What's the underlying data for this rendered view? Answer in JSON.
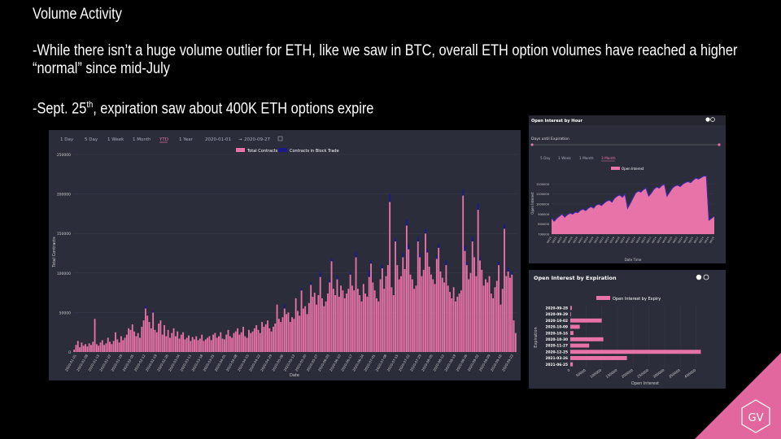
{
  "slide": {
    "title": "Volume Activity",
    "bullet1": "-While there isn’t a huge volume outlier for ETH, like we saw in BTC, overall ETH option volumes have reached a higher “normal” since mid-July",
    "bullet2_prefix": "-Sept. 25",
    "bullet2_sup": "th",
    "bullet2_suffix": ", expiration saw about 400K ETH options expire"
  },
  "logo_text": "GV",
  "colors": {
    "pink": "#e873a8",
    "navy": "#1a1a8c",
    "panel": "#2b2d3a",
    "grid": "#3c3e4d",
    "accent_active": "#e873a8"
  },
  "volume_panel": {
    "ranges": [
      "1 Day",
      "5 Day",
      "1 Week",
      "1 Month",
      "YTD",
      "1 Year"
    ],
    "active_range": "YTD",
    "date_from": "2020-01-01",
    "date_to": "2020-09-27",
    "calendar_icon": "calendar-icon",
    "ylabel": "Total Contracts",
    "xlabel": "Date"
  },
  "oi_hour_panel": {
    "title": "Open Interest by Hour",
    "slider_label": "Days until Expiration",
    "ranges": [
      "5 Day",
      "1 Week",
      "1 Month",
      "3 Month"
    ],
    "active_range": "3 Month",
    "ylabel": "Open Interest",
    "xlabel": "Date Time",
    "legend": "Open Interest"
  },
  "oi_exp_panel": {
    "title": "Open Interest by Expiration",
    "ylabel": "Expiration",
    "xlabel": "Open Interest",
    "legend": "Open Interest by Expiry"
  },
  "chart_data": [
    {
      "type": "bar",
      "legend": [
        "Total Contracts",
        "Contracts in Block Trade"
      ],
      "ylabel": "Total Contracts",
      "xlabel": "Date",
      "ylim": [
        0,
        250000
      ],
      "yticks": [
        0,
        50000,
        100000,
        150000,
        200000,
        250000
      ],
      "xticks": [
        "2020-01-01",
        "2020-01-08",
        "2020-01-15",
        "2020-01-22",
        "2020-01-29",
        "2020-02-05",
        "2020-02-12",
        "2020-02-19",
        "2020-02-26",
        "2020-03-04",
        "2020-03-11",
        "2020-03-18",
        "2020-03-25",
        "2020-04-01",
        "2020-04-08",
        "2020-04-15",
        "2020-04-22",
        "2020-04-29",
        "2020-05-06",
        "2020-05-13",
        "2020-05-20",
        "2020-05-27",
        "2020-06-03",
        "2020-06-10",
        "2020-06-17",
        "2020-06-24",
        "2020-07-01",
        "2020-07-08",
        "2020-07-15",
        "2020-07-22",
        "2020-07-29",
        "2020-08-05",
        "2020-08-12",
        "2020-08-19",
        "2020-08-26",
        "2020-09-02",
        "2020-09-09",
        "2020-09-16",
        "2020-09-23"
      ],
      "series": [
        {
          "name": "Total Contracts",
          "values": [
            3000,
            9000,
            14000,
            6000,
            12000,
            8000,
            10000,
            7000,
            11000,
            9000,
            13000,
            42000,
            10000,
            8000,
            12000,
            15000,
            9000,
            11000,
            18000,
            13000,
            10000,
            14000,
            25000,
            16000,
            12000,
            20000,
            15000,
            18000,
            22000,
            30000,
            28000,
            35000,
            26000,
            20000,
            24000,
            18000,
            32000,
            40000,
            55000,
            46000,
            38000,
            30000,
            50000,
            28000,
            25000,
            36000,
            40000,
            22000,
            34000,
            20000,
            28000,
            18000,
            24000,
            30000,
            20000,
            26000,
            17000,
            22000,
            25000,
            16000,
            18000,
            21000,
            14000,
            19000,
            16000,
            20000,
            15000,
            17000,
            22000,
            14000,
            16000,
            18000,
            20000,
            15000,
            22000,
            24000,
            18000,
            20000,
            25000,
            17000,
            16000,
            22000,
            28000,
            20000,
            18000,
            24000,
            26000,
            30000,
            22000,
            25000,
            32000,
            20000,
            18000,
            28000,
            24000,
            26000,
            30000,
            34000,
            28000,
            24000,
            38000,
            32000,
            35000,
            40000,
            30000,
            26000,
            32000,
            36000,
            60000,
            42000,
            38000,
            44000,
            55000,
            48000,
            50000,
            38000,
            44000,
            42000,
            68000,
            52000,
            46000,
            78000,
            55000,
            58000,
            48000,
            62000,
            85000,
            70000,
            75000,
            60000,
            72000,
            95000,
            68000,
            58000,
            64000,
            74000,
            88000,
            115000,
            80000,
            72000,
            92000,
            70000,
            84000,
            78000,
            68000,
            74000,
            80000,
            98000,
            84000,
            78000,
            120000,
            80000,
            72000,
            64000,
            86000,
            74000,
            70000,
            95000,
            112000,
            88000,
            78000,
            68000,
            64000,
            92000,
            106000,
            80000,
            96000,
            110000,
            190000,
            82000,
            72000,
            140000,
            110000,
            92000,
            96000,
            120000,
            105000,
            160000,
            130000,
            98000,
            92000,
            80000,
            84000,
            140000,
            120000,
            96000,
            104000,
            150000,
            126000,
            108000,
            98000,
            92000,
            86000,
            118000,
            132000,
            102000,
            94000,
            88000,
            110000,
            84000,
            76000,
            68000,
            82000,
            64000,
            70000,
            74000,
            78000,
            198000,
            128000,
            110000,
            92000,
            100000,
            140000,
            120000,
            96000,
            180000,
            116000,
            104000,
            84000,
            92000,
            88000,
            96000,
            74000,
            68000,
            82000,
            90000,
            110000,
            60000,
            80000,
            156000,
            96000,
            102000,
            94000,
            98000,
            40000,
            24000
          ]
        },
        {
          "name": "Contracts in Block Trade",
          "values": [
            0,
            0,
            0,
            0,
            0,
            0,
            0,
            0,
            0,
            0,
            0,
            0,
            0,
            0,
            0,
            0,
            0,
            0,
            0,
            0,
            0,
            0,
            0,
            0,
            0,
            0,
            0,
            0,
            0,
            0,
            0,
            0,
            0,
            0,
            0,
            0,
            0,
            0,
            3000,
            0,
            0,
            0,
            2000,
            0,
            0,
            0,
            0,
            0,
            0,
            0,
            0,
            0,
            0,
            0,
            0,
            0,
            0,
            0,
            0,
            0,
            0,
            0,
            0,
            0,
            0,
            0,
            0,
            0,
            0,
            0,
            0,
            0,
            0,
            0,
            0,
            0,
            0,
            0,
            0,
            0,
            0,
            0,
            0,
            0,
            0,
            0,
            0,
            0,
            0,
            0,
            0,
            0,
            0,
            0,
            0,
            0,
            0,
            0,
            0,
            0,
            0,
            0,
            0,
            0,
            0,
            0,
            0,
            0,
            0,
            0,
            0,
            0,
            5000,
            0,
            0,
            0,
            0,
            0,
            0,
            0,
            0,
            3000,
            0,
            0,
            0,
            0,
            4000,
            0,
            0,
            0,
            0,
            6000,
            0,
            0,
            0,
            0,
            3000,
            4000,
            0,
            0,
            5000,
            0,
            0,
            0,
            0,
            0,
            0,
            3000,
            0,
            0,
            6000,
            0,
            0,
            0,
            0,
            0,
            0,
            8000,
            4000,
            0,
            0,
            0,
            0,
            0,
            4000,
            0,
            0,
            0,
            10000,
            0,
            0,
            4000,
            0,
            0,
            0,
            5000,
            0,
            8000,
            6000,
            0,
            0,
            0,
            0,
            6000,
            4000,
            0,
            0,
            6000,
            4000,
            0,
            0,
            0,
            0,
            4000,
            5000,
            0,
            0,
            0,
            6000,
            0,
            0,
            0,
            0,
            0,
            0,
            0,
            0,
            8000,
            6000,
            4000,
            0,
            0,
            6000,
            0,
            0,
            8000,
            4000,
            0,
            0,
            0,
            0,
            0,
            0,
            0,
            0,
            0,
            4000,
            0,
            0,
            6000,
            0,
            5000,
            0,
            4000,
            0,
            0
          ]
        }
      ]
    },
    {
      "type": "area",
      "legend": [
        "Open Interest"
      ],
      "ylabel": "Open Interest",
      "xlabel": "Date Time",
      "ylim": [
        700000,
        1300000
      ],
      "yticks": [
        700000,
        800000,
        900000,
        1000000,
        1100000,
        1200000,
        1300000
      ],
      "series": [
        {
          "name": "Open Interest",
          "values": [
            860000,
            830000,
            860000,
            880000,
            900000,
            870000,
            895000,
            910000,
            900000,
            920000,
            915000,
            940000,
            950000,
            935000,
            960000,
            975000,
            960000,
            990000,
            1000000,
            985000,
            1010000,
            1030000,
            1040000,
            1020000,
            1060000,
            1080000,
            1090000,
            1070000,
            1100000,
            960000,
            1010000,
            1060000,
            1110000,
            1130000,
            1120000,
            1145000,
            1160000,
            1080000,
            1110000,
            1150000,
            1170000,
            1160000,
            1185000,
            1200000,
            1080000,
            1120000,
            1160000,
            1180000,
            1190000,
            1175000,
            1200000,
            1215000,
            1225000,
            1215000,
            1240000,
            1260000,
            1250000,
            1265000,
            1280000,
            1280000,
            840000,
            860000,
            880000
          ]
        }
      ]
    },
    {
      "type": "bar",
      "orientation": "horizontal",
      "legend": [
        "Open Interest by Expiry"
      ],
      "ylabel": "Expiration",
      "xlabel": "Open Interest",
      "xlim": [
        0,
        450000
      ],
      "xticks": [
        0,
        50000,
        100000,
        150000,
        200000,
        250000,
        300000,
        350000,
        400000
      ],
      "categories": [
        "2020-09-28",
        "2020-09-29",
        "2020-10-02",
        "2020-10-09",
        "2020-10-16",
        "2020-10-30",
        "2020-11-27",
        "2020-12-25",
        "2021-03-26",
        "2021-06-25"
      ],
      "values": [
        5000,
        2000,
        100000,
        30000,
        10000,
        105000,
        60000,
        415000,
        180000,
        8000
      ]
    }
  ]
}
